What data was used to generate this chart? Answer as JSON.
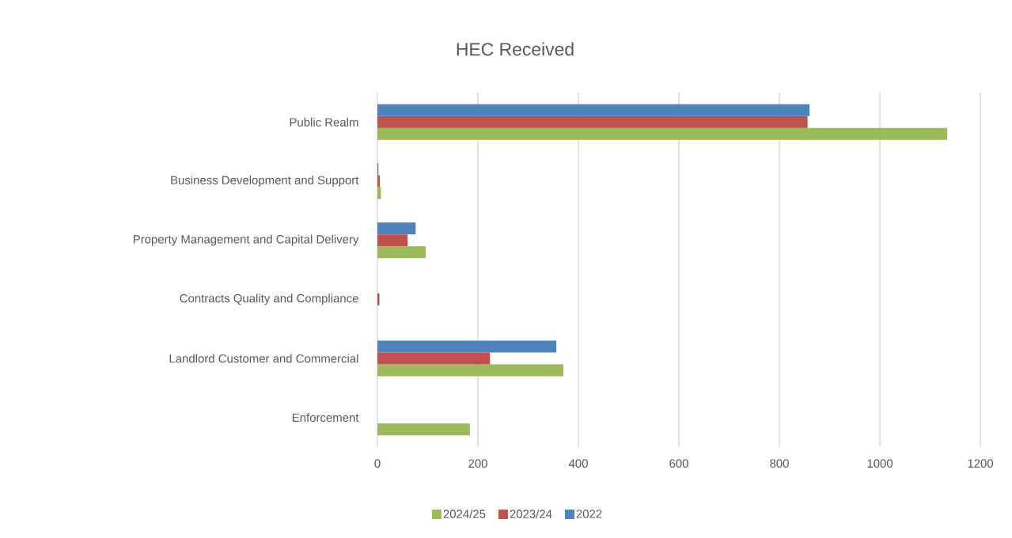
{
  "chart_data": {
    "type": "bar",
    "orientation": "horizontal",
    "title": "HEC  Received",
    "categories": [
      "Public Realm",
      "Business Development and Support",
      "Property Management and Capital Delivery",
      "Contracts Quality and Compliance",
      "Landlord Customer and Commercial",
      "Enforcement"
    ],
    "series": [
      {
        "name": "2024/25",
        "color": "#9bbb59",
        "values": [
          1134,
          7,
          96,
          null,
          370,
          184
        ]
      },
      {
        "name": "2023/24",
        "color": "#c0504d",
        "values": [
          856,
          5,
          60,
          4,
          224,
          null
        ]
      },
      {
        "name": "2022",
        "color": "#4f81bd",
        "values": [
          860,
          2,
          76,
          null,
          356,
          null
        ]
      }
    ],
    "xlim": [
      0,
      1200
    ],
    "xticks": [
      0,
      200,
      400,
      600,
      800,
      1000,
      1200
    ],
    "grid": "x",
    "legend": "bottom"
  }
}
